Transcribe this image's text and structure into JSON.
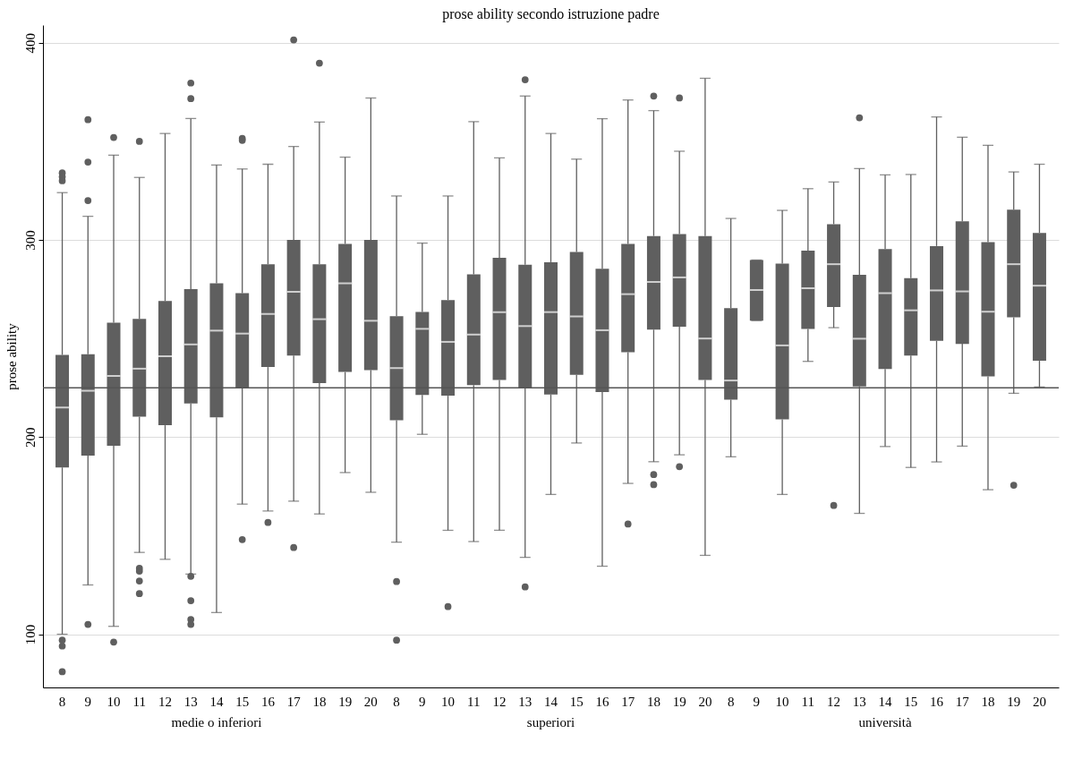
{
  "chart_data": {
    "type": "box",
    "title": "prose ability secondo istruzione padre",
    "ylabel": "prose ability",
    "categories": [
      "8",
      "9",
      "10",
      "11",
      "12",
      "13",
      "14",
      "15",
      "16",
      "17",
      "18",
      "19",
      "20",
      "8",
      "9",
      "10",
      "11",
      "12",
      "13",
      "14",
      "15",
      "16",
      "17",
      "18",
      "19",
      "20",
      "8",
      "9",
      "10",
      "11",
      "12",
      "13",
      "14",
      "15",
      "16",
      "17",
      "18",
      "19",
      "20"
    ],
    "color": "#5f5f5f",
    "boxes": [
      {
        "low": 100,
        "q1": 184.6,
        "median": 215,
        "q3": 241.7,
        "high": 324,
        "outliers": [
          334,
          332,
          330,
          97,
          94,
          81
        ]
      },
      {
        "low": 125,
        "q1": 190.6,
        "median": 223.5,
        "q3": 242,
        "high": 312,
        "outliers": [
          361,
          339.5,
          320,
          105
        ]
      },
      {
        "low": 104,
        "q1": 195.6,
        "median": 231,
        "q3": 258,
        "high": 343,
        "outliers": [
          352,
          96
        ]
      },
      {
        "low": 141.5,
        "q1": 210.4,
        "median": 234.7,
        "q3": 260,
        "high": 331.7,
        "outliers": [
          350,
          133.4,
          132,
          127,
          120.6
        ]
      },
      {
        "low": 138,
        "q1": 206,
        "median": 241,
        "q3": 269,
        "high": 354
      },
      {
        "low": 130.5,
        "q1": 217,
        "median": 247,
        "q3": 275,
        "high": 361.6,
        "outliers": [
          379.6,
          371.7,
          129.4,
          117,
          107.5,
          105
        ]
      },
      {
        "low": 111,
        "q1": 210,
        "median": 254,
        "q3": 278,
        "high": 338
      },
      {
        "low": 166,
        "q1": 225,
        "median": 252.5,
        "q3": 273,
        "high": 336,
        "outliers": [
          351.5,
          350.5,
          148
        ]
      },
      {
        "low": 162.5,
        "q1": 235.5,
        "median": 262.4,
        "q3": 287.7,
        "high": 338.4,
        "outliers": [
          156.7
        ]
      },
      {
        "low": 167.5,
        "q1": 241.3,
        "median": 273.7,
        "q3": 300,
        "high": 347.4,
        "outliers": [
          401.5,
          144
        ]
      },
      {
        "low": 161,
        "q1": 227.4,
        "median": 259.8,
        "q3": 287.7,
        "high": 359.8,
        "outliers": [
          389.7
        ]
      },
      {
        "low": 182,
        "q1": 233,
        "median": 278,
        "q3": 298,
        "high": 342
      },
      {
        "low": 172,
        "q1": 234,
        "median": 259,
        "q3": 300,
        "high": 372
      },
      {
        "low": 146.7,
        "q1": 208.5,
        "median": 235,
        "q3": 261.3,
        "high": 322.3,
        "outliers": [
          126.7,
          97
        ]
      },
      {
        "low": 201.4,
        "q1": 221.4,
        "median": 254.9,
        "q3": 263.5,
        "high": 298.4
      },
      {
        "low": 152.7,
        "q1": 221,
        "median": 248.3,
        "q3": 269.5,
        "high": 322.3,
        "outliers": [
          114
        ]
      },
      {
        "low": 147,
        "q1": 226.4,
        "median": 252,
        "q3": 282.5,
        "high": 360
      },
      {
        "low": 152.7,
        "q1": 229,
        "median": 263.4,
        "q3": 291,
        "high": 341.6
      },
      {
        "low": 139,
        "q1": 224.7,
        "median": 256.3,
        "q3": 287.4,
        "high": 373,
        "outliers": [
          381.3,
          124
        ]
      },
      {
        "low": 170.9,
        "q1": 221.6,
        "median": 263.4,
        "q3": 288.7,
        "high": 354
      },
      {
        "low": 197,
        "q1": 231.6,
        "median": 261.2,
        "q3": 293.9,
        "high": 341
      },
      {
        "low": 134.5,
        "q1": 222.8,
        "median": 254.2,
        "q3": 285.4,
        "high": 361.5
      },
      {
        "low": 176.5,
        "q1": 243,
        "median": 272.5,
        "q3": 298,
        "high": 371,
        "outliers": [
          155.9
        ]
      },
      {
        "low": 187.5,
        "q1": 254.5,
        "median": 278.7,
        "q3": 302,
        "high": 365.6,
        "outliers": [
          373,
          181,
          175.9
        ]
      },
      {
        "low": 191,
        "q1": 256,
        "median": 281,
        "q3": 303,
        "high": 345,
        "outliers": [
          372,
          185
        ]
      },
      {
        "low": 140,
        "q1": 229,
        "median": 250,
        "q3": 302,
        "high": 382
      },
      {
        "low": 190,
        "q1": 219,
        "median": 228.7,
        "q3": 265.4,
        "high": 310.9
      },
      {
        "low": 259.1,
        "q1": 259.1,
        "median": 274.6,
        "q3": 289.8,
        "high": 289.8
      },
      {
        "low": 170.9,
        "q1": 209,
        "median": 246.5,
        "q3": 288,
        "high": 315
      },
      {
        "low": 238.4,
        "q1": 254.9,
        "median": 275.5,
        "q3": 294.6,
        "high": 326
      },
      {
        "low": 255.5,
        "q1": 266,
        "median": 287.7,
        "q3": 308,
        "high": 329.4,
        "outliers": [
          165.3
        ]
      },
      {
        "low": 161.3,
        "q1": 225.7,
        "median": 249.9,
        "q3": 282.3,
        "high": 336.2,
        "outliers": [
          362
        ]
      },
      {
        "low": 195.2,
        "q1": 234.5,
        "median": 273,
        "q3": 295.4,
        "high": 333
      },
      {
        "low": 184.6,
        "q1": 241.3,
        "median": 264.3,
        "q3": 280.6,
        "high": 333.2
      },
      {
        "low": 187.4,
        "q1": 248.8,
        "median": 274.4,
        "q3": 296.9,
        "high": 362.4
      },
      {
        "low": 195.4,
        "q1": 247.3,
        "median": 273.9,
        "q3": 309.5,
        "high": 352.1
      },
      {
        "low": 173.3,
        "q1": 230.8,
        "median": 263.6,
        "q3": 298.9,
        "high": 348
      },
      {
        "low": 222.2,
        "q1": 260.8,
        "median": 287.7,
        "q3": 315.4,
        "high": 334.5,
        "outliers": [
          175.6
        ]
      },
      {
        "low": 225.4,
        "q1": 238.7,
        "median": 276.8,
        "q3": 303.6,
        "high": 338.4
      }
    ],
    "ylim": [
      73,
      409
    ],
    "yticks": [
      100,
      200,
      300,
      400
    ],
    "grid": "y",
    "ref_lines": [
      {
        "axis": "y",
        "value": 225,
        "color": "#555555"
      }
    ],
    "annotations": [
      "medie o inferiori",
      "superiori",
      "università"
    ]
  }
}
